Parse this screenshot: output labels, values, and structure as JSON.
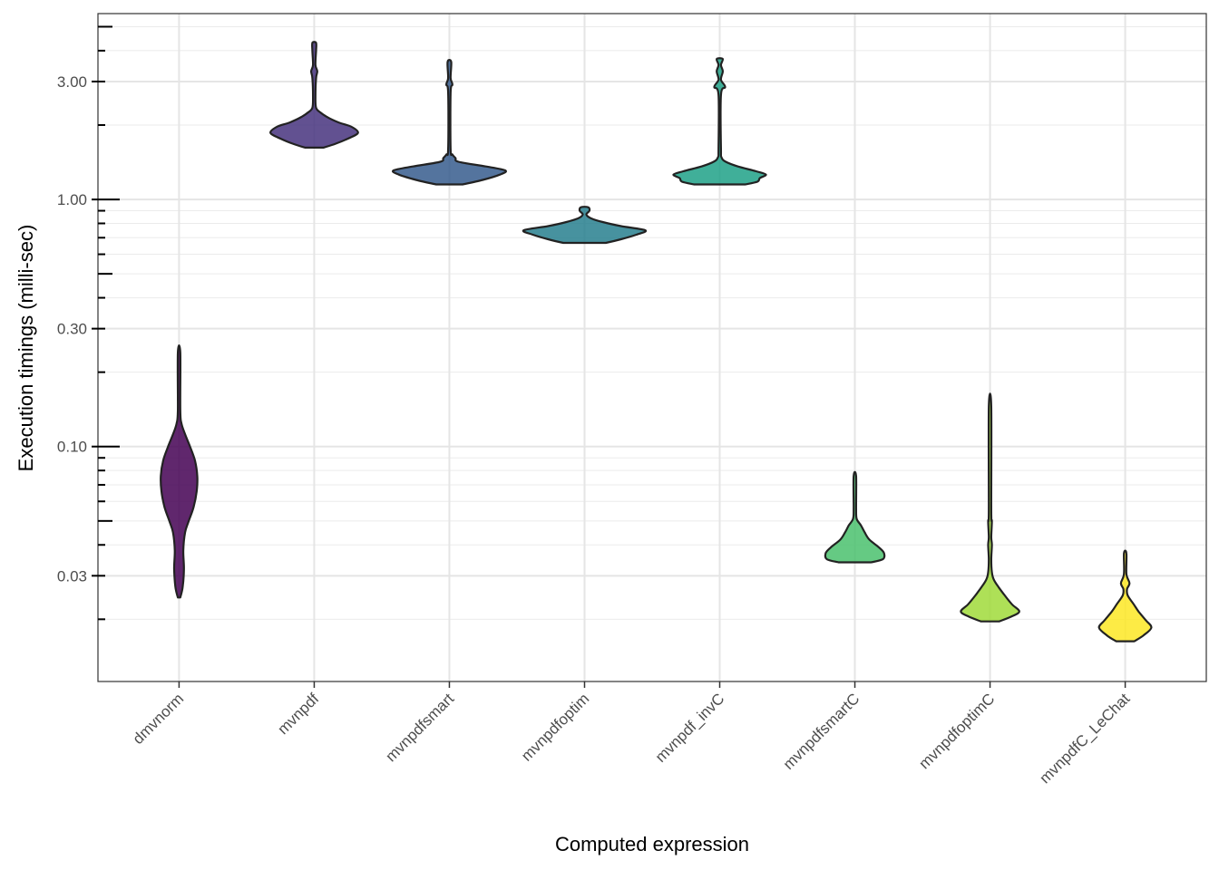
{
  "chart_data": {
    "type": "violin",
    "title": "",
    "xlabel": "Computed expression",
    "ylabel": "Execution timings (milli-sec)",
    "yscale": "log10",
    "ylim": [
      0.0112,
      5.65
    ],
    "grid": true,
    "legend": "none",
    "y_major_ticks": [
      {
        "value": 3.0,
        "label": "3.00"
      },
      {
        "value": 1.0,
        "label": "1.00"
      },
      {
        "value": 0.3,
        "label": "0.30"
      },
      {
        "value": 0.1,
        "label": "0.10"
      },
      {
        "value": 0.03,
        "label": "0.03"
      }
    ],
    "y_minor_ticks": [
      5,
      4,
      2,
      0.9,
      0.8,
      0.7,
      0.6,
      0.5,
      0.4,
      0.2,
      0.09,
      0.08,
      0.07,
      0.06,
      0.05,
      0.04,
      0.02
    ],
    "y_long_ticks": [
      5,
      1,
      0.5,
      0.1,
      0.05
    ],
    "categories": [
      "dmvnorm",
      "mvnpdf",
      "mvnpdfsmart",
      "mvnpdfoptim",
      "mvnpdf_invC",
      "mvnpdfsmartC",
      "mvnpdfoptimC",
      "mvnpdfC_LeChat"
    ],
    "series": [
      {
        "name": "dmvnorm",
        "color": "#440154",
        "min": 0.0245,
        "max": 0.24,
        "density": [
          [
            0.0245,
            0.02
          ],
          [
            0.027,
            0.06
          ],
          [
            0.032,
            0.08
          ],
          [
            0.038,
            0.07
          ],
          [
            0.045,
            0.1
          ],
          [
            0.05,
            0.16
          ],
          [
            0.057,
            0.24
          ],
          [
            0.066,
            0.29
          ],
          [
            0.076,
            0.3
          ],
          [
            0.088,
            0.26
          ],
          [
            0.1,
            0.18
          ],
          [
            0.112,
            0.1
          ],
          [
            0.124,
            0.04
          ],
          [
            0.14,
            0.02
          ],
          [
            0.24,
            0.02
          ]
        ]
      },
      {
        "name": "mvnpdf",
        "color": "#46337e",
        "min": 1.62,
        "max": 4.3,
        "density": [
          [
            1.62,
            0.15
          ],
          [
            1.68,
            0.35
          ],
          [
            1.76,
            0.55
          ],
          [
            1.86,
            0.72
          ],
          [
            1.97,
            0.61
          ],
          [
            2.05,
            0.4
          ],
          [
            2.15,
            0.22
          ],
          [
            2.25,
            0.1
          ],
          [
            2.35,
            0.03
          ],
          [
            2.6,
            0.02
          ],
          [
            3.1,
            0.03
          ],
          [
            3.3,
            0.05
          ],
          [
            3.5,
            0.02
          ],
          [
            4.0,
            0.03
          ],
          [
            4.3,
            0.03
          ]
        ]
      },
      {
        "name": "mvnpdfsmart",
        "color": "#365c8d",
        "min": 1.15,
        "max": 3.6,
        "density": [
          [
            1.15,
            0.22
          ],
          [
            1.2,
            0.55
          ],
          [
            1.26,
            0.83
          ],
          [
            1.31,
            0.92
          ],
          [
            1.36,
            0.6
          ],
          [
            1.42,
            0.15
          ],
          [
            1.47,
            0.1
          ],
          [
            1.52,
            0.05
          ],
          [
            1.6,
            0.02
          ],
          [
            2.7,
            0.02
          ],
          [
            2.92,
            0.05
          ],
          [
            3.1,
            0.02
          ],
          [
            3.6,
            0.03
          ]
        ]
      },
      {
        "name": "mvnpdfoptim",
        "color": "#277f8e",
        "min": 0.667,
        "max": 0.93,
        "density": [
          [
            0.667,
            0.35
          ],
          [
            0.69,
            0.6
          ],
          [
            0.72,
            0.85
          ],
          [
            0.75,
            1.0
          ],
          [
            0.78,
            0.6
          ],
          [
            0.81,
            0.3
          ],
          [
            0.84,
            0.1
          ],
          [
            0.87,
            0.03
          ],
          [
            0.9,
            0.08
          ],
          [
            0.93,
            0.06
          ]
        ]
      },
      {
        "name": "mvnpdf_invC",
        "color": "#1fa187",
        "min": 1.15,
        "max": 3.7,
        "density": [
          [
            1.15,
            0.42
          ],
          [
            1.18,
            0.62
          ],
          [
            1.22,
            0.66
          ],
          [
            1.26,
            0.76
          ],
          [
            1.3,
            0.6
          ],
          [
            1.36,
            0.3
          ],
          [
            1.42,
            0.1
          ],
          [
            1.48,
            0.03
          ],
          [
            1.6,
            0.02
          ],
          [
            2.65,
            0.02
          ],
          [
            2.85,
            0.09
          ],
          [
            3.05,
            0.02
          ],
          [
            3.3,
            0.05
          ],
          [
            3.5,
            0.02
          ],
          [
            3.7,
            0.05
          ]
        ]
      },
      {
        "name": "mvnpdfsmartC",
        "color": "#4ac16d",
        "min": 0.034,
        "max": 0.076,
        "density": [
          [
            0.034,
            0.27
          ],
          [
            0.035,
            0.46
          ],
          [
            0.037,
            0.48
          ],
          [
            0.039,
            0.4
          ],
          [
            0.042,
            0.24
          ],
          [
            0.045,
            0.16
          ],
          [
            0.048,
            0.1
          ],
          [
            0.051,
            0.03
          ],
          [
            0.056,
            0.02
          ],
          [
            0.076,
            0.02
          ]
        ]
      },
      {
        "name": "mvnpdfoptimC",
        "color": "#a0da39",
        "min": 0.0196,
        "max": 0.145,
        "density": [
          [
            0.0196,
            0.15
          ],
          [
            0.0205,
            0.35
          ],
          [
            0.0215,
            0.48
          ],
          [
            0.023,
            0.36
          ],
          [
            0.025,
            0.24
          ],
          [
            0.027,
            0.14
          ],
          [
            0.029,
            0.06
          ],
          [
            0.031,
            0.03
          ],
          [
            0.035,
            0.02
          ],
          [
            0.04,
            0.03
          ],
          [
            0.043,
            0.02
          ],
          [
            0.05,
            0.03
          ],
          [
            0.055,
            0.02
          ],
          [
            0.145,
            0.02
          ]
        ]
      },
      {
        "name": "mvnpdfC_LeChat",
        "color": "#fde725",
        "min": 0.0163,
        "max": 0.037,
        "density": [
          [
            0.0163,
            0.15
          ],
          [
            0.0172,
            0.3
          ],
          [
            0.0185,
            0.43
          ],
          [
            0.0198,
            0.34
          ],
          [
            0.0215,
            0.22
          ],
          [
            0.023,
            0.14
          ],
          [
            0.025,
            0.04
          ],
          [
            0.0265,
            0.03
          ],
          [
            0.028,
            0.07
          ],
          [
            0.0305,
            0.02
          ],
          [
            0.037,
            0.02
          ]
        ]
      }
    ]
  }
}
